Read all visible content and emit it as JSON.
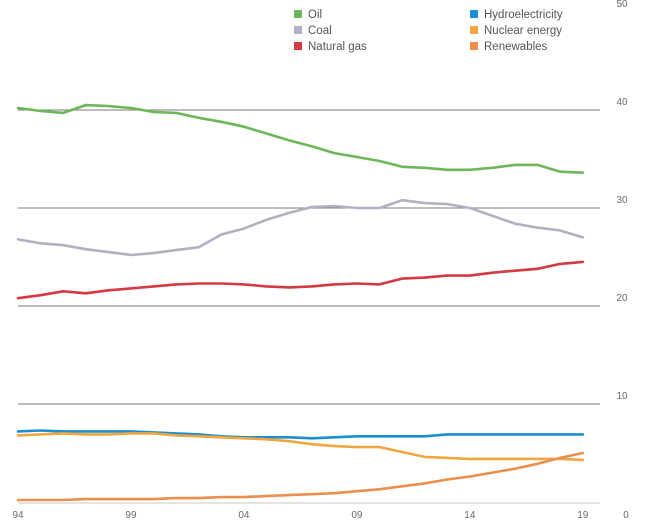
{
  "chart_data": {
    "type": "line",
    "title": "",
    "xlabel": "",
    "ylabel": "",
    "x": [
      1994,
      1995,
      1996,
      1997,
      1998,
      1999,
      2000,
      2001,
      2002,
      2003,
      2004,
      2005,
      2006,
      2007,
      2008,
      2009,
      2010,
      2011,
      2012,
      2013,
      2014,
      2015,
      2016,
      2017,
      2018,
      2019
    ],
    "x_tick_labels": [
      "94",
      "99",
      "04",
      "09",
      "14",
      "19"
    ],
    "x_tick_values": [
      1994,
      1999,
      2004,
      2009,
      2014,
      2019
    ],
    "xlim": [
      1994,
      2021
    ],
    "ylim": [
      0,
      50
    ],
    "y_ticks": [
      0,
      10,
      20,
      30,
      40,
      50
    ],
    "y_axis_side": "right",
    "grid": "major horizontal lines",
    "legend_position": "top",
    "series": [
      {
        "name": "Oil",
        "color": "#6db65a",
        "values": [
          40.2,
          39.9,
          39.7,
          40.5,
          40.4,
          40.2,
          39.8,
          39.7,
          39.2,
          38.8,
          38.3,
          37.6,
          36.9,
          36.3,
          35.6,
          35.2,
          34.8,
          34.2,
          34.1,
          33.9,
          33.9,
          34.1,
          34.4,
          34.4,
          33.7,
          33.6
        ]
      },
      {
        "name": "Coal",
        "color": "#b2b0c4",
        "values": [
          26.8,
          26.4,
          26.2,
          25.8,
          25.5,
          25.2,
          25.4,
          25.7,
          26.0,
          27.3,
          27.9,
          28.8,
          29.5,
          30.1,
          30.2,
          30.0,
          30.0,
          30.8,
          30.5,
          30.4,
          30.0,
          29.2,
          28.4,
          28.0,
          27.7,
          27.0
        ]
      },
      {
        "name": "Natural gas",
        "color": "#d43a43",
        "values": [
          20.8,
          21.1,
          21.5,
          21.3,
          21.6,
          21.8,
          22.0,
          22.2,
          22.3,
          22.3,
          22.2,
          22.0,
          21.9,
          22.0,
          22.2,
          22.3,
          22.2,
          22.8,
          22.9,
          23.1,
          23.1,
          23.4,
          23.6,
          23.8,
          24.3,
          24.5
        ]
      },
      {
        "name": "Hydroelectricity",
        "color": "#1b8fd2",
        "values": [
          7.2,
          7.3,
          7.2,
          7.2,
          7.2,
          7.2,
          7.1,
          7.0,
          6.9,
          6.7,
          6.6,
          6.6,
          6.6,
          6.5,
          6.6,
          6.7,
          6.7,
          6.7,
          6.7,
          6.9,
          6.9,
          6.9,
          6.9,
          6.9,
          6.9,
          6.9
        ]
      },
      {
        "name": "Nuclear energy",
        "color": "#f0a742",
        "values": [
          6.8,
          6.9,
          7.0,
          6.9,
          6.9,
          7.0,
          7.0,
          6.8,
          6.7,
          6.6,
          6.5,
          6.4,
          6.2,
          5.9,
          5.7,
          5.6,
          5.6,
          5.1,
          4.6,
          4.5,
          4.4,
          4.4,
          4.4,
          4.4,
          4.4,
          4.3
        ]
      },
      {
        "name": "Renewables",
        "color": "#ea8f4e",
        "values": [
          0.2,
          0.2,
          0.2,
          0.3,
          0.3,
          0.3,
          0.3,
          0.4,
          0.4,
          0.5,
          0.5,
          0.6,
          0.7,
          0.8,
          0.9,
          1.1,
          1.3,
          1.6,
          1.9,
          2.3,
          2.6,
          3.0,
          3.4,
          3.9,
          4.5,
          5.0
        ]
      }
    ]
  }
}
